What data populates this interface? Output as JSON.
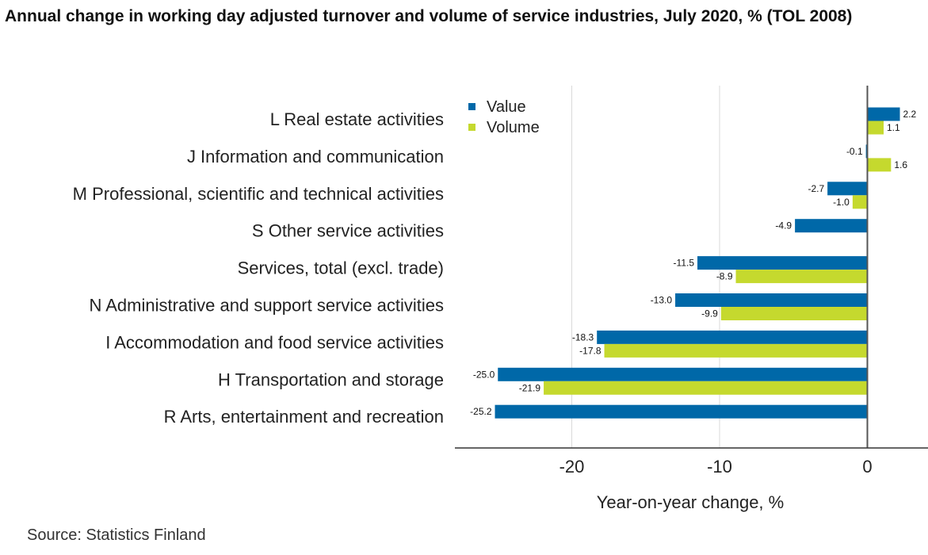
{
  "title": "Annual change in working day adjusted turnover and volume of service industries, July 2020, % (TOL 2008)",
  "source": "Source: Statistics Finland",
  "colors": {
    "value": "#0068a8",
    "volume": "#c5d92e",
    "grid": "#d9d9d9",
    "zero_line": "#555555",
    "axis": "#333333"
  },
  "chart_data": {
    "type": "bar",
    "orientation": "horizontal",
    "categories": [
      "L Real estate activities",
      "J Information and communication",
      "M Professional, scientific and technical activities",
      "S Other service activities",
      "Services, total (excl. trade)",
      "N Administrative and support service activities",
      "I Accommodation and food service activities",
      "H Transportation and storage",
      "R Arts, entertainment and recreation"
    ],
    "series": [
      {
        "name": "Value",
        "values": [
          2.2,
          -0.1,
          -2.7,
          -4.9,
          -11.5,
          -13.0,
          -18.3,
          -25.0,
          -25.2
        ]
      },
      {
        "name": "Volume",
        "values": [
          1.1,
          1.6,
          -1.0,
          null,
          -8.9,
          -9.9,
          -17.8,
          -21.9,
          null
        ]
      }
    ],
    "xlabel": "Year-on-year change, %",
    "xticks": [
      -20,
      -10,
      0
    ],
    "xlim": [
      -28,
      4
    ],
    "grid": true,
    "legend_position": "top-left"
  }
}
